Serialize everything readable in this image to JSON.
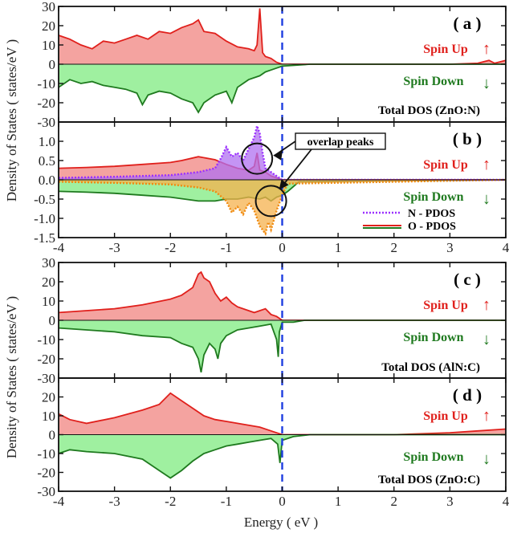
{
  "figure": {
    "ylabel_top": "Density of States ( states/eV )",
    "ylabel_bottom": "Density of States ( states/eV )",
    "xlabel": "Energy ( eV )",
    "x_ticks": [
      "-4",
      "-3",
      "-2",
      "-1",
      "0",
      "1",
      "2",
      "3",
      "4"
    ]
  },
  "colors": {
    "spin_up_fill": "#f4a3a0",
    "spin_up_line": "#e0201c",
    "spin_down_fill": "#9ff0a0",
    "spin_down_line": "#1f7a1f",
    "n_pdos_fill": "#b070f0",
    "n_pdos_line": "#9b30ff",
    "o_pdos_fill": "#f6b24e",
    "o_pdos_line": "#f08a10",
    "fermi_line": "#1f3fe0",
    "spin_up_text": "#e0201c",
    "spin_down_text": "#1f7a1f"
  },
  "panels": {
    "a": {
      "label": "( a )",
      "spin_up_label": "Spin Up",
      "spin_down_label": "Spin Down",
      "caption": "Total DOS (ZnO:N)",
      "yticks": [
        "30",
        "20",
        "10",
        "0",
        "-10",
        "-20",
        "-30"
      ]
    },
    "b": {
      "label": "( b )",
      "spin_up_label": "Spin Up",
      "spin_down_label": "Spin Down",
      "overlap_label": "overlap peaks",
      "legend_n": "N - PDOS",
      "legend_o": "O - PDOS",
      "yticks": [
        "1.0",
        "0.5",
        "0.0",
        "-0.5",
        "-1.0",
        "-1.5"
      ]
    },
    "c": {
      "label": "( c )",
      "spin_up_label": "Spin Up",
      "spin_down_label": "Spin Down",
      "caption": "Total DOS (AlN:C)",
      "yticks": [
        "30",
        "20",
        "10",
        "0",
        "-10",
        "-20",
        "-30"
      ]
    },
    "d": {
      "label": "( d )",
      "spin_up_label": "Spin Up",
      "spin_down_label": "Spin Down",
      "caption": "Total DOS (ZnO:C)",
      "yticks": [
        "20",
        "10",
        "0",
        "-10",
        "-20",
        "-30"
      ]
    }
  },
  "chart_data": [
    {
      "type": "area",
      "id": "a",
      "title": "Total DOS (ZnO:N)",
      "xlabel": "Energy ( eV )",
      "ylabel": "Density of States ( states/eV )",
      "xlim": [
        -4,
        4
      ],
      "ylim": [
        -30,
        30
      ],
      "fermi_level": 0,
      "series": [
        {
          "name": "Spin Up",
          "x": [
            -4,
            -3.8,
            -3.6,
            -3.4,
            -3.2,
            -3,
            -2.8,
            -2.6,
            -2.4,
            -2.2,
            -2,
            -1.8,
            -1.6,
            -1.5,
            -1.4,
            -1.2,
            -1,
            -0.8,
            -0.6,
            -0.5,
            -0.45,
            -0.4,
            -0.35,
            -0.3,
            -0.2,
            -0.1,
            0,
            0.5,
            1,
            2,
            3,
            3.5,
            3.7,
            3.8,
            4
          ],
          "y": [
            15,
            13,
            10,
            8,
            12,
            11,
            13,
            15,
            13,
            17,
            16,
            19,
            21,
            23,
            17,
            16,
            12,
            9,
            8,
            7,
            10,
            29,
            6,
            4,
            3,
            1,
            0,
            0,
            0,
            0,
            0,
            0.5,
            2,
            0.5,
            2
          ]
        },
        {
          "name": "Spin Down",
          "x": [
            -4,
            -3.8,
            -3.6,
            -3.4,
            -3.2,
            -3,
            -2.8,
            -2.6,
            -2.5,
            -2.4,
            -2.2,
            -2,
            -1.8,
            -1.6,
            -1.5,
            -1.4,
            -1.2,
            -1,
            -0.9,
            -0.8,
            -0.6,
            -0.4,
            -0.3,
            -0.2,
            -0.1,
            0,
            0.5,
            4
          ],
          "y": [
            -12,
            -8,
            -10,
            -9,
            -11,
            -12,
            -13,
            -15,
            -21,
            -16,
            -14,
            -15,
            -18,
            -20,
            -25,
            -20,
            -16,
            -14,
            -20,
            -12,
            -8,
            -6,
            -4,
            -3,
            -2,
            -1,
            0,
            0
          ]
        }
      ]
    },
    {
      "type": "area",
      "id": "b",
      "xlim": [
        -4,
        4
      ],
      "ylim": [
        -1.5,
        1.5
      ],
      "fermi_level": 0,
      "series": [
        {
          "name": "Spin Up",
          "x": [
            -4,
            -3.5,
            -3,
            -2.5,
            -2,
            -1.8,
            -1.5,
            -1.2,
            -1,
            -0.8,
            -0.6,
            -0.5,
            -0.45,
            -0.4,
            -0.3,
            -0.2,
            -0.1,
            0,
            4
          ],
          "y": [
            0.3,
            0.32,
            0.35,
            0.4,
            0.45,
            0.5,
            0.6,
            0.52,
            0.4,
            0.3,
            0.25,
            0.35,
            0.7,
            0.25,
            0.2,
            0.1,
            0.05,
            0,
            0
          ]
        },
        {
          "name": "Spin Down",
          "x": [
            -4,
            -3.5,
            -3,
            -2.5,
            -2,
            -1.5,
            -1.2,
            -1,
            -0.8,
            -0.6,
            -0.4,
            -0.3,
            -0.2,
            -0.1,
            0,
            0.1,
            0.3,
            4
          ],
          "y": [
            -0.3,
            -0.32,
            -0.35,
            -0.4,
            -0.45,
            -0.55,
            -0.55,
            -0.5,
            -0.5,
            -0.45,
            -0.5,
            -0.45,
            -0.55,
            -0.45,
            -0.4,
            -0.3,
            -0.05,
            0
          ]
        },
        {
          "name": "N - PDOS",
          "x": [
            -4,
            -3,
            -2,
            -1.5,
            -1.2,
            -1.1,
            -1.0,
            -0.9,
            -0.8,
            -0.7,
            -0.6,
            -0.5,
            -0.45,
            -0.4,
            -0.35,
            -0.3,
            -0.2,
            -0.1,
            0,
            4
          ],
          "y": [
            0.05,
            0.08,
            0.12,
            0.2,
            0.3,
            0.55,
            0.85,
            0.6,
            0.7,
            0.5,
            0.8,
            1.1,
            1.4,
            1.2,
            0.7,
            0.3,
            0.2,
            0.1,
            0,
            0
          ]
        },
        {
          "name": "O - PDOS",
          "x": [
            -4,
            -3,
            -2,
            -1.5,
            -1.2,
            -1.0,
            -0.9,
            -0.8,
            -0.7,
            -0.6,
            -0.5,
            -0.4,
            -0.3,
            -0.25,
            -0.2,
            -0.1,
            0,
            0.1,
            4
          ],
          "y": [
            -0.05,
            -0.08,
            -0.12,
            -0.2,
            -0.3,
            -0.55,
            -0.85,
            -0.7,
            -0.9,
            -0.6,
            -0.8,
            -1.2,
            -1.4,
            -1.1,
            -1.3,
            -0.8,
            -0.4,
            -0.1,
            0
          ]
        }
      ]
    },
    {
      "type": "area",
      "id": "c",
      "title": "Total DOS (AlN:C)",
      "xlim": [
        -4,
        4
      ],
      "ylim": [
        -30,
        30
      ],
      "fermi_level": 0,
      "series": [
        {
          "name": "Spin Up",
          "x": [
            -4,
            -3.5,
            -3,
            -2.5,
            -2,
            -1.8,
            -1.6,
            -1.5,
            -1.45,
            -1.4,
            -1.3,
            -1.2,
            -1.1,
            -1,
            -0.9,
            -0.8,
            -0.6,
            -0.5,
            -0.3,
            -0.2,
            -0.1,
            0,
            4
          ],
          "y": [
            4,
            5,
            6,
            8,
            11,
            13,
            17,
            24,
            25,
            22,
            20,
            14,
            10,
            12,
            9,
            7,
            5,
            4,
            6,
            3,
            2,
            0,
            0
          ]
        },
        {
          "name": "Spin Down",
          "x": [
            -4,
            -3.5,
            -3,
            -2.5,
            -2,
            -1.8,
            -1.6,
            -1.5,
            -1.45,
            -1.4,
            -1.3,
            -1.2,
            -1.15,
            -1.1,
            -1,
            -0.8,
            -0.6,
            -0.4,
            -0.2,
            -0.1,
            -0.07,
            -0.05,
            0,
            0.2,
            0.4,
            4
          ],
          "y": [
            -4,
            -5,
            -6,
            -8,
            -9,
            -12,
            -14,
            -20,
            -27,
            -18,
            -12,
            -15,
            -20,
            -12,
            -8,
            -5,
            -4,
            -3,
            -2,
            -10,
            -19,
            -6,
            -1,
            -1,
            0,
            0
          ]
        }
      ]
    },
    {
      "type": "area",
      "id": "d",
      "title": "Total DOS (ZnO:C)",
      "xlabel": "Energy ( eV )",
      "xlim": [
        -4,
        4
      ],
      "ylim": [
        -30,
        30
      ],
      "fermi_level": 0,
      "series": [
        {
          "name": "Spin Up",
          "x": [
            -4,
            -3.8,
            -3.5,
            -3,
            -2.5,
            -2.2,
            -2,
            -1.8,
            -1.6,
            -1.4,
            -1.2,
            -1,
            -0.8,
            -0.6,
            -0.4,
            -0.2,
            0,
            0.5,
            2,
            3,
            3.5,
            4
          ],
          "y": [
            11,
            8,
            6,
            9,
            13,
            16,
            22,
            18,
            14,
            10,
            8,
            7,
            6,
            5,
            4,
            2,
            0,
            0,
            0,
            1,
            2,
            3
          ]
        },
        {
          "name": "Spin Down",
          "x": [
            -4,
            -3.8,
            -3.5,
            -3,
            -2.5,
            -2.2,
            -2,
            -1.8,
            -1.6,
            -1.4,
            -1.2,
            -1,
            -0.8,
            -0.6,
            -0.4,
            -0.2,
            -0.08,
            -0.04,
            0,
            0.2,
            0.5,
            4
          ],
          "y": [
            -10,
            -8,
            -9,
            -10,
            -13,
            -19,
            -23,
            -19,
            -14,
            -10,
            -8,
            -6,
            -5,
            -4,
            -3,
            -2,
            -5,
            -15,
            -3,
            -1,
            0,
            0
          ]
        }
      ]
    }
  ]
}
